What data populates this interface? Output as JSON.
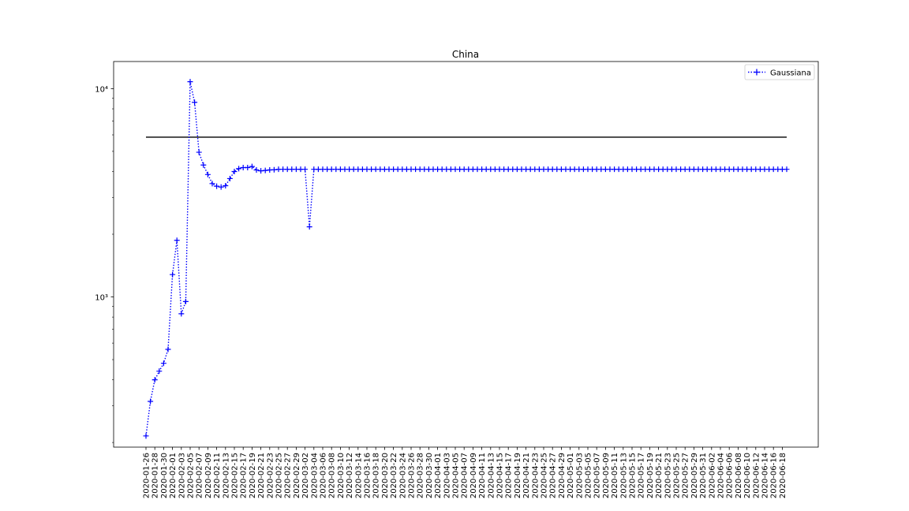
{
  "chart_data": {
    "type": "line",
    "title": "China",
    "xlabel": "",
    "ylabel": "",
    "y_scale": "log",
    "ylim": [
      190,
      13500
    ],
    "y_ticks": [
      {
        "value": 1000,
        "label": "10³"
      },
      {
        "value": 10000,
        "label": "10⁴"
      }
    ],
    "x_start_date": "2020-01-26",
    "x_tick_step_days": 2,
    "x_tick_labels": [
      "2020-01-26",
      "2020-01-28",
      "2020-01-30",
      "2020-02-01",
      "2020-02-03",
      "2020-02-05",
      "2020-02-07",
      "2020-02-09",
      "2020-02-11",
      "2020-02-13",
      "2020-02-15",
      "2020-02-17",
      "2020-02-19",
      "2020-02-21",
      "2020-02-23",
      "2020-02-25",
      "2020-02-27",
      "2020-02-29",
      "2020-03-02",
      "2020-03-04",
      "2020-03-06",
      "2020-03-08",
      "2020-03-10",
      "2020-03-12",
      "2020-03-14",
      "2020-03-16",
      "2020-03-18",
      "2020-03-20",
      "2020-03-22",
      "2020-03-24",
      "2020-03-26",
      "2020-03-28",
      "2020-03-30",
      "2020-04-01",
      "2020-04-03",
      "2020-04-05",
      "2020-04-07",
      "2020-04-09",
      "2020-04-11",
      "2020-04-13",
      "2020-04-15",
      "2020-04-17",
      "2020-04-19",
      "2020-04-21",
      "2020-04-23",
      "2020-04-25",
      "2020-04-27",
      "2020-04-29",
      "2020-05-01",
      "2020-05-03",
      "2020-05-05",
      "2020-05-07",
      "2020-05-09",
      "2020-05-11",
      "2020-05-13",
      "2020-05-15",
      "2020-05-17",
      "2020-05-19",
      "2020-05-21",
      "2020-05-23",
      "2020-05-25",
      "2020-05-27",
      "2020-05-29",
      "2020-05-31",
      "2020-06-02",
      "2020-06-04",
      "2020-06-06",
      "2020-06-08",
      "2020-06-10",
      "2020-06-12",
      "2020-06-14",
      "2020-06-16",
      "2020-06-18"
    ],
    "series": [
      {
        "name": "Gaussiana",
        "color": "#0000ff",
        "line_style": "dotted",
        "marker": "+",
        "head_values": [
          215,
          315,
          400,
          440,
          480,
          560,
          1280,
          1870,
          830,
          950,
          10800,
          8600,
          4950,
          4300,
          3870,
          3500,
          3400,
          3370,
          3420,
          3700,
          4000,
          4130,
          4180,
          4180,
          4230,
          4070,
          4030,
          4050,
          4070,
          4080,
          4100,
          4100,
          4100,
          4100,
          4100,
          4100,
          4100,
          2170
        ],
        "plateau_value": 4100,
        "total_points": 146
      }
    ],
    "reference_line": {
      "value": 5850,
      "color": "#000000",
      "from_index": 0,
      "to_index": 145
    },
    "legend": {
      "entries": [
        "Gaussiana"
      ],
      "position": "top-right"
    },
    "grid": false
  }
}
